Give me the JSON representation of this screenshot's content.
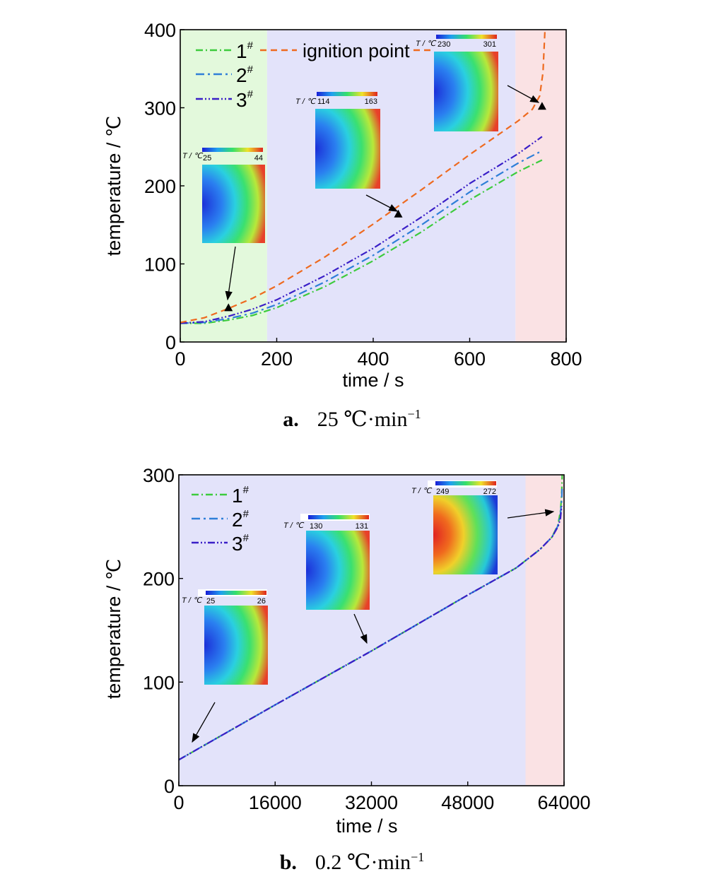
{
  "chart_data": [
    {
      "type": "line",
      "caption_label": "a.",
      "caption_text": "25 ℃·min",
      "caption_sup": "−1",
      "xlabel": "time / s",
      "ylabel": "temperature / ℃",
      "xlim": [
        0,
        800
      ],
      "ylim": [
        0,
        400
      ],
      "xticks": [
        0,
        200,
        400,
        600,
        800
      ],
      "yticks": [
        0,
        100,
        200,
        300,
        400
      ],
      "regions": [
        {
          "from": 0,
          "to": 180,
          "color": "#e3f9dc"
        },
        {
          "from": 180,
          "to": 695,
          "color": "#e3e3fa"
        },
        {
          "from": 695,
          "to": 800,
          "color": "#fae2e4"
        }
      ],
      "series": [
        {
          "name": "1#",
          "color": "#3dcb3d",
          "dash": "10,4,2,4",
          "x": [
            0,
            50,
            100,
            150,
            200,
            300,
            400,
            500,
            600,
            700,
            750
          ],
          "y": [
            24,
            24,
            28,
            34,
            44,
            71,
            104,
            141,
            182,
            218,
            233
          ]
        },
        {
          "name": "2#",
          "color": "#2f7fd8",
          "dash": "12,5,3,5",
          "x": [
            0,
            50,
            100,
            150,
            200,
            300,
            400,
            500,
            600,
            700,
            750
          ],
          "y": [
            24,
            25,
            30,
            37,
            48,
            77,
            111,
            150,
            192,
            229,
            245
          ]
        },
        {
          "name": "3#",
          "color": "#3a1fc7",
          "dash": "10,3,2,3,2,3",
          "x": [
            0,
            50,
            100,
            150,
            200,
            300,
            400,
            500,
            600,
            700,
            750
          ],
          "y": [
            24,
            26,
            33,
            42,
            54,
            85,
            120,
            160,
            203,
            241,
            263
          ]
        },
        {
          "name": "ignition point",
          "color": "#ee6a1f",
          "dash": "9,6",
          "x": [
            0,
            50,
            100,
            150,
            200,
            300,
            400,
            500,
            600,
            700,
            730,
            745,
            752,
            756
          ],
          "y": [
            25,
            31,
            43,
            56,
            72,
            109,
            151,
            195,
            240,
            283,
            298,
            315,
            345,
            400
          ]
        }
      ],
      "markers": [
        {
          "x": 100,
          "y": 44
        },
        {
          "x": 452,
          "y": 164
        },
        {
          "x": 750,
          "y": 302
        }
      ],
      "insets": [
        {
          "label": "T / ℃",
          "min": "25",
          "max": "44",
          "scheme": "cold"
        },
        {
          "label": "T / ℃",
          "min": "114",
          "max": "163",
          "scheme": "cold"
        },
        {
          "label": "T / ℃",
          "min": "230",
          "max": "301",
          "scheme": "cold"
        }
      ]
    },
    {
      "type": "line",
      "caption_label": "b.",
      "caption_text": "0.2 ℃·min",
      "caption_sup": "−1",
      "xlabel": "time / s",
      "ylabel": "temperature / ℃",
      "xlim": [
        0,
        64000
      ],
      "ylim": [
        0,
        300
      ],
      "xticks": [
        0,
        16000,
        32000,
        48000,
        64000
      ],
      "yticks": [
        0,
        100,
        200,
        300
      ],
      "regions": [
        {
          "from": 0,
          "to": 57600,
          "color": "#e3e3fa"
        },
        {
          "from": 57600,
          "to": 64000,
          "color": "#fae2e4"
        }
      ],
      "series": [
        {
          "name": "1#",
          "color": "#3dcb3d",
          "dash": "10,4,2,4",
          "x": [
            0,
            16000,
            32000,
            48000,
            56000,
            60000,
            62000,
            63000,
            63400,
            63600,
            63700
          ],
          "y": [
            25,
            78,
            130,
            184,
            210,
            228,
            240,
            252,
            265,
            280,
            300
          ]
        },
        {
          "name": "2#",
          "color": "#2f7fd8",
          "dash": "12,5,3,5",
          "x": [
            0,
            16000,
            32000,
            48000,
            56000,
            60000,
            62000,
            63000,
            63400,
            63600,
            63700
          ],
          "y": [
            25,
            78,
            130,
            184,
            210,
            228,
            240,
            251,
            262,
            275,
            290
          ]
        },
        {
          "name": "3#",
          "color": "#3a1fc7",
          "dash": "10,3,2,3,2,3",
          "x": [
            0,
            16000,
            32000,
            48000,
            56000,
            60000,
            62000,
            63000,
            63400,
            63600
          ],
          "y": [
            25,
            78,
            130,
            184,
            210,
            228,
            240,
            250,
            258,
            270
          ]
        }
      ],
      "insets": [
        {
          "label": "T / ℃",
          "min": "25",
          "max": "26",
          "scheme": "cold"
        },
        {
          "label": "T / ℃",
          "min": "130",
          "max": "131",
          "scheme": "cold"
        },
        {
          "label": "T / ℃",
          "min": "249",
          "max": "272",
          "scheme": "hot"
        }
      ]
    }
  ]
}
